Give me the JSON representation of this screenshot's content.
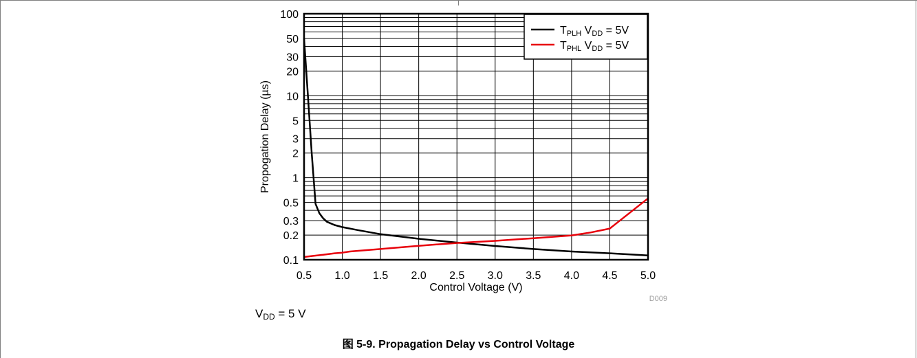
{
  "chart_data": {
    "type": "line",
    "xlabel": "Control Voltage (V)",
    "ylabel": "Propogation Delay (µs)",
    "xlim": [
      0.5,
      5.0
    ],
    "ylim": [
      0.1,
      100
    ],
    "yscale": "log",
    "x_ticks": [
      0.5,
      1.0,
      1.5,
      2.0,
      2.5,
      3.0,
      3.5,
      4.0,
      4.5,
      5.0
    ],
    "x_tick_labels": [
      "0.5",
      "1.0",
      "1.5",
      "2.0",
      "2.5",
      "3.0",
      "3.5",
      "4.0",
      "4.5",
      "5.0"
    ],
    "y_ticks": [
      0.1,
      0.2,
      0.3,
      0.5,
      1,
      2,
      3,
      5,
      10,
      20,
      30,
      50,
      100
    ],
    "y_tick_labels": [
      "0.1",
      "0.2",
      "0.3",
      "0.5",
      "1",
      "2",
      "3",
      "5",
      "10",
      "20",
      "30",
      "50",
      "100"
    ],
    "grid": true,
    "legend_position": "top-right",
    "series": [
      {
        "name_main": "T",
        "name_sub": "PLH",
        "name_mid": " V",
        "name_sub2": "DD",
        "name_tail": " = 5V",
        "color": "#000000",
        "x": [
          0.5,
          0.55,
          0.6,
          0.65,
          0.7,
          0.75,
          0.8,
          0.9,
          1.0,
          1.2,
          1.5,
          2.0,
          2.5,
          3.0,
          3.5,
          4.0,
          4.5,
          5.0
        ],
        "y": [
          50,
          10,
          2,
          0.48,
          0.37,
          0.32,
          0.29,
          0.265,
          0.25,
          0.23,
          0.205,
          0.18,
          0.162,
          0.147,
          0.135,
          0.126,
          0.12,
          0.113
        ]
      },
      {
        "name_main": "T",
        "name_sub": "PHL",
        "name_mid": " V",
        "name_sub2": "DD",
        "name_tail": " = 5V",
        "color": "#e8000b",
        "x": [
          0.5,
          0.6,
          0.75,
          0.9,
          1.0,
          1.1,
          1.5,
          2.0,
          2.5,
          3.0,
          3.5,
          4.0,
          4.25,
          4.5,
          5.0
        ],
        "y": [
          0.108,
          0.111,
          0.115,
          0.12,
          0.122,
          0.126,
          0.135,
          0.148,
          0.16,
          0.17,
          0.183,
          0.198,
          0.215,
          0.24,
          0.56
        ]
      }
    ],
    "watermark": "D009"
  },
  "condition": {
    "main": "V",
    "sub": "DD",
    "tail": " = 5 V"
  },
  "caption": "图 5-9. Propagation Delay vs Control Voltage"
}
